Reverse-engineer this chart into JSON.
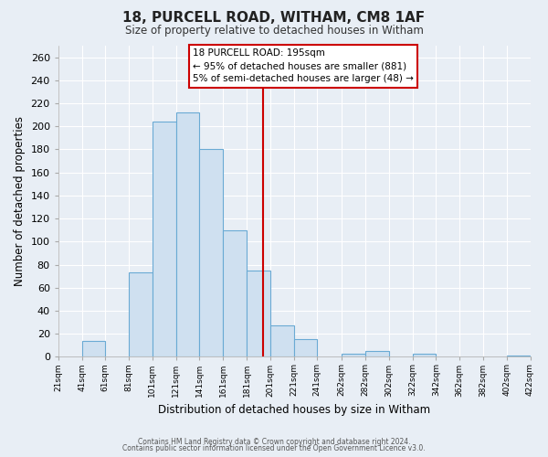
{
  "title": "18, PURCELL ROAD, WITHAM, CM8 1AF",
  "subtitle": "Size of property relative to detached houses in Witham",
  "xlabel": "Distribution of detached houses by size in Witham",
  "ylabel": "Number of detached properties",
  "bar_color": "#cfe0f0",
  "bar_edge_color": "#6aaad4",
  "background_color": "#e8eef5",
  "plot_bg_color": "#e8eef5",
  "grid_color": "#ffffff",
  "reference_line_x": 195,
  "reference_line_color": "#cc0000",
  "bin_lefts": [
    21,
    41,
    61,
    81,
    101,
    121,
    141,
    161,
    181,
    201,
    221,
    241,
    262,
    282,
    302,
    322,
    342,
    362,
    382,
    402
  ],
  "bin_counts": [
    0,
    14,
    0,
    73,
    204,
    212,
    180,
    110,
    75,
    27,
    15,
    0,
    3,
    5,
    0,
    3,
    0,
    0,
    0,
    1
  ],
  "bin_width": 20,
  "ylim": [
    0,
    270
  ],
  "yticks": [
    0,
    20,
    40,
    60,
    80,
    100,
    120,
    140,
    160,
    180,
    200,
    220,
    240,
    260
  ],
  "xlim_left": 21,
  "xlim_right": 422,
  "annotation_line1": "18 PURCELL ROAD: 195sqm",
  "annotation_line2": "← 95% of detached houses are smaller (881)",
  "annotation_line3": "5% of semi-detached houses are larger (48) →",
  "footer_line1": "Contains HM Land Registry data © Crown copyright and database right 2024.",
  "footer_line2": "Contains public sector information licensed under the Open Government Licence v3.0.",
  "tick_labels": [
    "21sqm",
    "41sqm",
    "61sqm",
    "81sqm",
    "101sqm",
    "121sqm",
    "141sqm",
    "161sqm",
    "181sqm",
    "201sqm",
    "221sqm",
    "241sqm",
    "262sqm",
    "282sqm",
    "302sqm",
    "322sqm",
    "342sqm",
    "362sqm",
    "382sqm",
    "402sqm",
    "422sqm"
  ],
  "tick_positions": [
    21,
    41,
    61,
    81,
    101,
    121,
    141,
    161,
    181,
    201,
    221,
    241,
    262,
    282,
    302,
    322,
    342,
    362,
    382,
    402,
    422
  ]
}
